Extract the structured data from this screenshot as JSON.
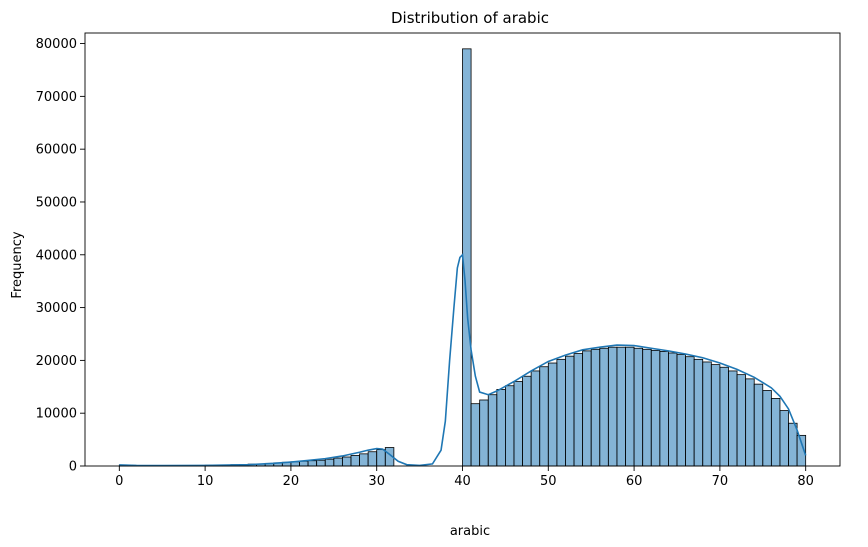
{
  "chart_data": {
    "type": "bar",
    "title": "Distribution of arabic",
    "xlabel": "arabic",
    "ylabel": "Frequency",
    "xlim": [
      -4,
      84
    ],
    "ylim": [
      0,
      82000
    ],
    "xticks": [
      0,
      10,
      20,
      30,
      40,
      50,
      60,
      70,
      80
    ],
    "yticks": [
      0,
      10000,
      20000,
      30000,
      40000,
      50000,
      60000,
      70000,
      80000
    ],
    "grid": false,
    "legend": "none",
    "bar_color": "#1f77b4",
    "bar_opacity": 0.55,
    "bin_start": 0,
    "bin_width": 1,
    "values": [
      200,
      100,
      100,
      100,
      100,
      100,
      100,
      100,
      100,
      100,
      150,
      150,
      200,
      250,
      300,
      350,
      400,
      500,
      600,
      700,
      800,
      900,
      1000,
      1100,
      1300,
      1500,
      1700,
      2000,
      2300,
      2700,
      3100,
      3500,
      0,
      0,
      0,
      0,
      0,
      0,
      0,
      0,
      79000,
      11800,
      12500,
      13500,
      14500,
      15200,
      16000,
      17000,
      18000,
      18800,
      19500,
      20200,
      20800,
      21300,
      21800,
      22100,
      22300,
      22500,
      22500,
      22500,
      22300,
      22100,
      21900,
      21700,
      21400,
      21100,
      20700,
      20200,
      19700,
      19200,
      18700,
      18000,
      17300,
      16500,
      15500,
      14300,
      12800,
      10500,
      8100,
      5800
    ],
    "kde": {
      "color": "#1f77b4",
      "x": [
        0,
        2,
        5,
        10,
        15,
        18,
        20,
        22,
        24,
        26,
        28,
        29,
        30,
        30.7,
        31.5,
        32.5,
        33.5,
        35,
        36.5,
        37.5,
        38,
        38.5,
        39,
        39.4,
        39.7,
        40,
        40.3,
        40.6,
        41,
        41.5,
        42,
        43,
        44,
        46,
        48,
        50,
        52,
        54,
        56,
        58,
        60,
        62,
        64,
        66,
        68,
        70,
        72,
        74,
        76,
        77,
        78,
        79,
        80
      ],
      "y": [
        200,
        100,
        80,
        100,
        250,
        500,
        750,
        1050,
        1400,
        1900,
        2600,
        3000,
        3300,
        3200,
        2200,
        900,
        250,
        100,
        400,
        3000,
        8500,
        20000,
        30000,
        37500,
        39500,
        40000,
        35000,
        28000,
        22000,
        17000,
        14000,
        13500,
        14200,
        16000,
        18000,
        19800,
        21000,
        22000,
        22500,
        22900,
        22800,
        22300,
        21800,
        21200,
        20500,
        19500,
        18300,
        16800,
        14800,
        13200,
        10800,
        6800,
        2000
      ]
    }
  }
}
